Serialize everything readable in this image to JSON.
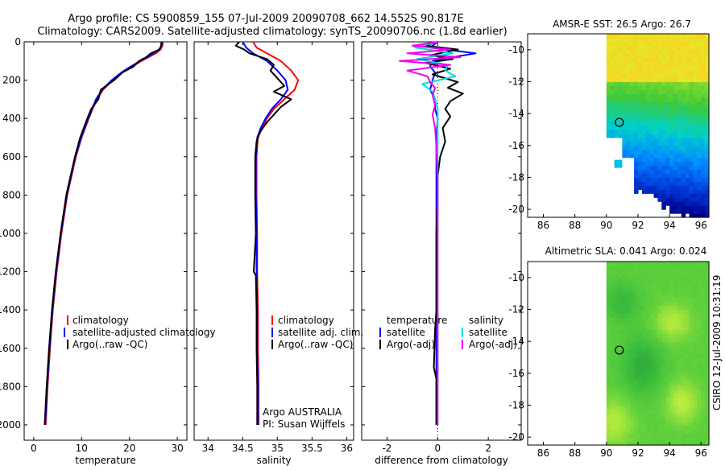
{
  "title_line1": "Argo profile: CS 5900859_155 07-Jul-2009 20090708_662 14.552S 90.817E",
  "title_line2": "Climatology: CARS2009. Satellite-adjusted climatology: synTS_20090706.nc (1.8d earlier)",
  "side_label": "CSIRO 12-Jul-2009 10:31:19",
  "colors": {
    "climatology": "#ff0000",
    "satellite": "#0000ff",
    "argo": "#000000",
    "salinity_satellite": "#00dddd",
    "salinity_argo": "#ee00ee"
  },
  "chart_data": [
    {
      "id": "temperature",
      "type": "line",
      "xlabel": "temperature",
      "xlim": [
        -2,
        32
      ],
      "ylim": [
        2080,
        0
      ],
      "xticks": [
        0,
        10,
        20,
        30
      ],
      "yticks": [
        0,
        200,
        400,
        600,
        800,
        1000,
        1200,
        1400,
        1600,
        1800,
        2000
      ],
      "legend": [
        "climatology",
        "satellite-adjusted climatology",
        "Argo(..raw -QC)"
      ],
      "series": [
        {
          "name": "climatology",
          "color": "#ff0000",
          "depth": [
            0,
            20,
            40,
            60,
            80,
            100,
            130,
            160,
            200,
            250,
            300,
            350,
            400,
            500,
            600,
            800,
            1000,
            1200,
            1400,
            1600,
            1800,
            2000
          ],
          "values": [
            27.0,
            26.9,
            26.5,
            25.5,
            24.0,
            22.5,
            20.5,
            18.5,
            16.5,
            14.5,
            13.2,
            12.3,
            11.5,
            10.0,
            8.8,
            7.0,
            5.8,
            4.8,
            4.0,
            3.4,
            2.9,
            2.5
          ]
        },
        {
          "name": "satellite-adjusted climatology",
          "color": "#0000ff",
          "depth": [
            0,
            20,
            40,
            60,
            80,
            100,
            130,
            160,
            200,
            250,
            300,
            350,
            400,
            500,
            600,
            800,
            1000,
            1200,
            1400,
            1600,
            1800,
            2000
          ],
          "values": [
            26.8,
            26.7,
            26.2,
            25.0,
            23.8,
            22.2,
            20.2,
            18.3,
            16.3,
            14.3,
            13.0,
            12.2,
            11.4,
            9.9,
            8.7,
            6.9,
            5.7,
            4.7,
            3.9,
            3.3,
            2.8,
            2.4
          ]
        },
        {
          "name": "Argo(..raw -QC)",
          "color": "#000000",
          "depth": [
            0,
            20,
            40,
            60,
            80,
            100,
            130,
            160,
            200,
            250,
            300,
            350,
            400,
            500,
            600,
            800,
            1000,
            1200,
            1400,
            1600,
            1800,
            2000
          ],
          "values": [
            26.7,
            26.6,
            26.3,
            24.5,
            23.5,
            22.0,
            20.8,
            18.5,
            16.8,
            14.0,
            13.5,
            12.0,
            11.2,
            9.7,
            8.6,
            6.8,
            5.6,
            4.6,
            3.8,
            3.2,
            2.7,
            2.3
          ]
        }
      ]
    },
    {
      "id": "salinity",
      "type": "line",
      "xlabel": "salinity",
      "xlim": [
        33.8,
        36.1
      ],
      "ylim": [
        2080,
        0
      ],
      "xticks": [
        34,
        34.5,
        35,
        35.5,
        36
      ],
      "legend": [
        "climatology",
        "satellite adj. clim.",
        "Argo(..raw -QC)"
      ],
      "annotation": [
        "Argo AUSTRALIA",
        "PI: Susan Wijffels"
      ],
      "series": [
        {
          "name": "climatology",
          "color": "#ff0000",
          "depth": [
            0,
            30,
            60,
            100,
            150,
            200,
            250,
            300,
            350,
            400,
            450,
            500,
            600,
            800,
            1000,
            1200,
            1400,
            1600,
            1800,
            2000
          ],
          "values": [
            34.65,
            34.7,
            34.85,
            35.05,
            35.2,
            35.3,
            35.25,
            35.1,
            34.95,
            34.85,
            34.78,
            34.72,
            34.7,
            34.7,
            34.71,
            34.71,
            34.72,
            34.72,
            34.73,
            34.73
          ]
        },
        {
          "name": "satellite adj. clim.",
          "color": "#0000ff",
          "depth": [
            0,
            30,
            60,
            100,
            150,
            200,
            250,
            300,
            350,
            400,
            450,
            500,
            600,
            800,
            1000,
            1200,
            1400,
            1600,
            1800,
            2000
          ],
          "values": [
            34.5,
            34.55,
            34.65,
            34.85,
            35.0,
            35.12,
            35.15,
            35.05,
            34.92,
            34.83,
            34.76,
            34.71,
            34.69,
            34.69,
            34.7,
            34.7,
            34.71,
            34.71,
            34.72,
            34.72
          ]
        },
        {
          "name": "Argo(..raw -QC)",
          "color": "#000000",
          "depth": [
            0,
            20,
            40,
            60,
            90,
            120,
            150,
            190,
            230,
            260,
            300,
            340,
            380,
            420,
            470,
            520,
            600,
            800,
            1000,
            1200,
            1220,
            1400,
            1600,
            1800,
            2000
          ],
          "values": [
            34.45,
            34.4,
            34.52,
            34.6,
            34.85,
            34.95,
            34.9,
            35.0,
            35.1,
            34.95,
            35.2,
            35.05,
            34.95,
            34.85,
            34.75,
            34.7,
            34.68,
            34.68,
            34.69,
            34.66,
            34.69,
            34.7,
            34.7,
            34.71,
            34.71
          ]
        }
      ]
    },
    {
      "id": "difference",
      "type": "line",
      "xlabel": "difference from climatology",
      "xlim": [
        -3,
        3.3
      ],
      "ylim": [
        2080,
        0
      ],
      "xticks": [
        -2,
        0,
        2
      ],
      "legend_left_title": "temperature",
      "legend_left": [
        "satellite",
        "Argo(-adj)"
      ],
      "legend_right_title": "salinity",
      "legend_right": [
        "satellite",
        "Argo(-adj)"
      ],
      "series": [
        {
          "name": "temperature satellite",
          "color": "#0000ff",
          "depth": [
            0,
            30,
            60,
            80,
            100,
            130,
            160,
            200,
            250,
            300,
            350,
            400,
            500,
            700,
            1000,
            1500,
            2000
          ],
          "values": [
            0.0,
            -0.3,
            1.5,
            0.6,
            -0.2,
            -0.3,
            -0.1,
            -0.2,
            -0.3,
            -0.1,
            -0.1,
            0.0,
            -0.05,
            -0.05,
            -0.05,
            -0.05,
            -0.05
          ]
        },
        {
          "name": "temperature Argo(-adj)",
          "color": "#000000",
          "depth": [
            0,
            20,
            40,
            70,
            90,
            110,
            140,
            170,
            210,
            240,
            270,
            310,
            350,
            390,
            450,
            520,
            600,
            700,
            800,
            1000,
            1200,
            1400,
            1500,
            1700,
            1760,
            1850,
            2000
          ],
          "values": [
            0.0,
            -0.5,
            0.8,
            -0.3,
            0.6,
            -0.5,
            0.5,
            -0.2,
            0.8,
            0.4,
            1.0,
            0.5,
            0.3,
            0.5,
            0.2,
            0.3,
            0.1,
            0.0,
            0.0,
            -0.05,
            -0.05,
            -0.05,
            -0.1,
            -0.15,
            -0.05,
            -0.05,
            -0.05
          ]
        },
        {
          "name": "salinity satellite",
          "color": "#00dddd",
          "depth": [
            0,
            30,
            60,
            90,
            120,
            150,
            180,
            220,
            260,
            300,
            350,
            400,
            500,
            700,
            1000,
            1500,
            2000
          ],
          "values": [
            0.0,
            -0.9,
            0.6,
            -0.8,
            0.4,
            0.3,
            0.7,
            -0.6,
            -0.2,
            -0.1,
            0.0,
            0.0,
            0.0,
            0.0,
            0.0,
            0.0,
            0.0
          ]
        },
        {
          "name": "salinity Argo(-adj)",
          "color": "#ee00ee",
          "depth": [
            0,
            20,
            40,
            60,
            80,
            100,
            120,
            150,
            180,
            210,
            240,
            280,
            330,
            380,
            450,
            550,
            700,
            1000,
            1500,
            2000
          ],
          "values": [
            0.0,
            -1.0,
            0.5,
            -1.2,
            0.9,
            -1.5,
            0.5,
            -1.2,
            -0.4,
            -0.3,
            -0.1,
            -0.2,
            -0.1,
            -0.2,
            -0.1,
            -0.05,
            0.0,
            0.0,
            0.0,
            0.0
          ]
        }
      ]
    },
    {
      "id": "sst_map",
      "type": "heatmap",
      "title": "AMSR-E SST: 26.5 Argo: 26.7",
      "xlim": [
        85,
        96.5
      ],
      "ylim": [
        -20.5,
        -9
      ],
      "xticks": [
        86,
        88,
        90,
        92,
        94,
        96
      ],
      "yticks": [
        -10,
        -12,
        -14,
        -16,
        -18,
        -20
      ],
      "argo_location": [
        90.817,
        -14.552
      ]
    },
    {
      "id": "sla_map",
      "type": "heatmap",
      "title": "Altimetric SLA: 0.041 Argo: 0.024",
      "xlim": [
        85,
        96.5
      ],
      "ylim": [
        -20.5,
        -9
      ],
      "xticks": [
        86,
        88,
        90,
        92,
        94,
        96
      ],
      "yticks": [
        -10,
        -12,
        -14,
        -16,
        -18,
        -20
      ],
      "argo_location": [
        90.817,
        -14.552
      ]
    }
  ]
}
